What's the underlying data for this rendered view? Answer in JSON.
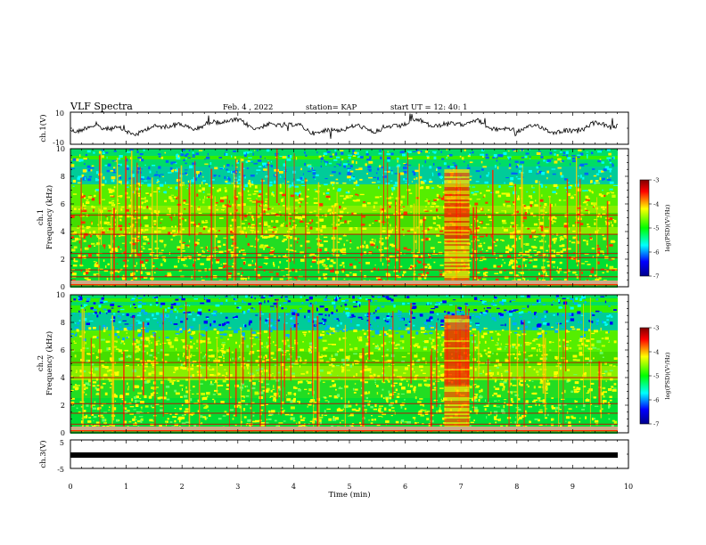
{
  "header": {
    "title": "VLF Spectra",
    "date": "Feb. 4 , 2022",
    "station": "station= KAP",
    "start": "start UT = 12: 40: 1"
  },
  "chart_data": [
    {
      "name": "ch1-waveform",
      "type": "line",
      "ylabel": "ch.1(V)",
      "ylim": [
        -10,
        10
      ],
      "y_ticks": [
        "10",
        "-10"
      ],
      "xlim": [
        0,
        10
      ],
      "color": "#000000"
    },
    {
      "name": "ch1-spectrogram",
      "type": "heatmap",
      "ylabel": "ch.1\nFrequency (kHz)",
      "ylim": [
        0,
        10
      ],
      "y_ticks": [
        "10",
        "8",
        "6",
        "4",
        "2",
        "0"
      ],
      "xlim": [
        0,
        9.8
      ],
      "colorbar": {
        "label": "log(PSD)(V²/Hz)",
        "ticks": [
          "-3",
          "-4",
          "-5",
          "-6",
          "-7"
        ],
        "range": [
          -7,
          -3
        ]
      }
    },
    {
      "name": "ch2-spectrogram",
      "type": "heatmap",
      "ylabel": "ch.2\nFrequency (kHz)",
      "ylim": [
        0,
        10
      ],
      "y_ticks": [
        "10",
        "8",
        "6",
        "4",
        "2",
        "0"
      ],
      "xlim": [
        0,
        9.8
      ],
      "colorbar": {
        "label": "log(PSD)(V²/Hz)",
        "ticks": [
          "-3",
          "-4",
          "-5",
          "-6",
          "-7"
        ],
        "range": [
          -7,
          -3
        ]
      }
    },
    {
      "name": "ch3-waveform",
      "type": "line",
      "ylabel": "ch.3(V)",
      "ylim": [
        -5,
        5
      ],
      "y_ticks": [
        "5",
        "-5"
      ],
      "xlim": [
        0,
        10
      ],
      "color": "#000000"
    }
  ],
  "x_axis": {
    "label": "Time (min)",
    "ticks": [
      "0",
      "1",
      "2",
      "3",
      "4",
      "5",
      "6",
      "7",
      "8",
      "9",
      "10"
    ],
    "range": [
      0,
      10
    ]
  },
  "colors": {
    "colormap": [
      "#800000",
      "#ff0000",
      "#ffff00",
      "#00ff00",
      "#00ffff",
      "#0000ff",
      "#00008b"
    ]
  }
}
